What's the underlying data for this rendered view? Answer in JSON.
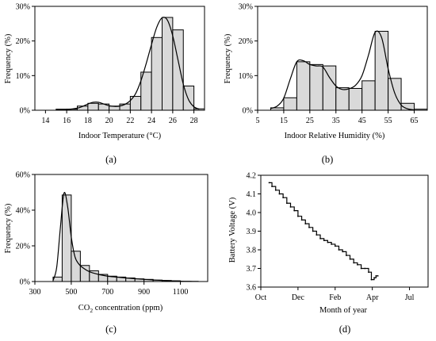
{
  "chart_data": [
    {
      "id": "a",
      "type": "bar",
      "caption": "(a)",
      "xlabel": "Indoor Temperature (°C)",
      "ylabel": "Frequency (%)",
      "xlim": [
        13,
        29
      ],
      "ylim": [
        0,
        30
      ],
      "xticks": [
        14,
        16,
        18,
        20,
        22,
        24,
        26,
        28
      ],
      "yticks": [
        0,
        10,
        20,
        30
      ],
      "ytick_labels": [
        "0%",
        "10%",
        "20%",
        "30%"
      ],
      "bins": [
        [
          15,
          16
        ],
        [
          16,
          17
        ],
        [
          17,
          18
        ],
        [
          18,
          19
        ],
        [
          19,
          20
        ],
        [
          20,
          21
        ],
        [
          21,
          22
        ],
        [
          22,
          23
        ],
        [
          23,
          24
        ],
        [
          24,
          25
        ],
        [
          25,
          26
        ],
        [
          26,
          27
        ],
        [
          27,
          28
        ],
        [
          28,
          29
        ]
      ],
      "values": [
        0.3,
        0.3,
        1.2,
        2.0,
        1.8,
        1.2,
        1.8,
        4.0,
        11.0,
        21.0,
        26.8,
        23.2,
        7.0,
        0.4
      ],
      "density_curve": {
        "x": [
          15,
          16,
          17,
          17.5,
          18,
          18.5,
          19,
          19.5,
          20,
          20.5,
          21,
          21.5,
          22,
          22.5,
          23,
          23.5,
          24,
          24.5,
          25,
          25.5,
          26,
          26.5,
          27,
          27.5,
          28,
          28.5
        ],
        "y": [
          0.1,
          0.2,
          0.6,
          1.1,
          1.8,
          2.3,
          2.3,
          1.8,
          1.3,
          1.1,
          1.2,
          1.7,
          2.8,
          4.8,
          8.5,
          13.5,
          19.0,
          24.0,
          26.7,
          26.0,
          21.5,
          14.5,
          7.5,
          3.0,
          1.0,
          0.3
        ]
      }
    },
    {
      "id": "b",
      "type": "bar",
      "caption": "(b)",
      "xlabel": "Indoor Relative Humidity (%)",
      "ylabel": "Frequency (%)",
      "xlim": [
        5,
        70
      ],
      "ylim": [
        0,
        30
      ],
      "xticks": [
        5,
        15,
        25,
        35,
        45,
        55,
        65
      ],
      "yticks": [
        0,
        10,
        20,
        30
      ],
      "ytick_labels": [
        "0%",
        "10%",
        "20%",
        "30%"
      ],
      "bins": [
        [
          10,
          15
        ],
        [
          15,
          20
        ],
        [
          20,
          25
        ],
        [
          25,
          30
        ],
        [
          30,
          35
        ],
        [
          35,
          40
        ],
        [
          40,
          45
        ],
        [
          45,
          50
        ],
        [
          50,
          55
        ],
        [
          55,
          60
        ],
        [
          60,
          65
        ]
      ],
      "values": [
        0.7,
        3.6,
        14.0,
        13.2,
        12.8,
        6.5,
        6.3,
        8.5,
        22.8,
        9.2,
        2.0
      ],
      "extra_bars": [
        {
          "bin": [
            65,
            70
          ],
          "value": 0.3
        }
      ],
      "density_curve": {
        "x": [
          10,
          12.5,
          15,
          17.5,
          20,
          22.5,
          25,
          27.5,
          30,
          32.5,
          35,
          37.5,
          40,
          42.5,
          45,
          47.5,
          50,
          52.5,
          55,
          57.5,
          60,
          62.5,
          65
        ],
        "y": [
          0.5,
          1.2,
          3.5,
          9.0,
          14.0,
          14.3,
          13.2,
          12.8,
          12.5,
          9.5,
          7.0,
          6.0,
          6.2,
          7.2,
          10.0,
          16.0,
          22.5,
          21.0,
          12.0,
          5.0,
          1.5,
          0.4,
          0.1
        ]
      }
    },
    {
      "id": "c",
      "type": "bar",
      "caption": "(c)",
      "xlabel_main": "CO",
      "xlabel_sub": "2",
      "xlabel_rest": " concentration (ppm)",
      "ylabel": "Frequency (%)",
      "xlim": [
        300,
        1250
      ],
      "ylim": [
        0,
        60
      ],
      "xticks": [
        300,
        500,
        700,
        900,
        1100
      ],
      "yticks": [
        0,
        20,
        40,
        60
      ],
      "ytick_labels": [
        "0%",
        "20%",
        "40%",
        "60%"
      ],
      "bins": [
        [
          400,
          450
        ],
        [
          450,
          500
        ],
        [
          500,
          550
        ],
        [
          550,
          600
        ],
        [
          600,
          650
        ],
        [
          650,
          700
        ],
        [
          700,
          750
        ],
        [
          750,
          800
        ],
        [
          800,
          850
        ],
        [
          850,
          900
        ],
        [
          900,
          950
        ],
        [
          950,
          1000
        ],
        [
          1000,
          1050
        ],
        [
          1050,
          1100
        ]
      ],
      "values": [
        2.5,
        48.5,
        17.0,
        9.0,
        6.0,
        4.0,
        3.0,
        2.5,
        2.0,
        1.5,
        1.2,
        0.8,
        0.6,
        0.4
      ],
      "density_curve": {
        "x": [
          400,
          420,
          440,
          460,
          480,
          500,
          520,
          540,
          560,
          600,
          650,
          700,
          750,
          800,
          850,
          900,
          950,
          1000,
          1050,
          1100,
          1150,
          1200
        ],
        "y": [
          0.5,
          8.0,
          30.0,
          49.5,
          42.0,
          25.0,
          14.0,
          10.0,
          8.0,
          5.5,
          4.0,
          3.0,
          2.5,
          2.0,
          1.6,
          1.2,
          0.9,
          0.6,
          0.4,
          0.2,
          0.1,
          0.05
        ]
      }
    },
    {
      "id": "d",
      "type": "line",
      "caption": "(d)",
      "xlabel": "Month of year",
      "ylabel": "Battery Voltage (V)",
      "xlim": [
        0,
        9
      ],
      "ylim": [
        3.6,
        4.2
      ],
      "xticks": [
        0,
        2,
        4,
        6,
        8
      ],
      "xtick_labels": [
        "Oct",
        "Dec",
        "Feb",
        "Apr",
        "Jul"
      ],
      "yticks": [
        3.6,
        3.7,
        3.8,
        3.9,
        4.0,
        4.1,
        4.2
      ],
      "ytick_labels": [
        "3.6",
        "3.7",
        "3.8",
        "3.9",
        "4.0",
        "4.1",
        "4.2"
      ],
      "series": [
        {
          "x": [
            0.45,
            0.6,
            0.8,
            1.0,
            1.2,
            1.4,
            1.6,
            1.8,
            2.0,
            2.2,
            2.4,
            2.6,
            2.8,
            3.0,
            3.2,
            3.4,
            3.6,
            3.8,
            4.0,
            4.2,
            4.4,
            4.6,
            4.8,
            5.0,
            5.2,
            5.4,
            5.6,
            5.8,
            5.95,
            6.1,
            6.2,
            6.3
          ],
          "y": [
            4.16,
            4.14,
            4.12,
            4.1,
            4.08,
            4.05,
            4.03,
            4.01,
            3.98,
            3.96,
            3.94,
            3.92,
            3.9,
            3.88,
            3.86,
            3.85,
            3.84,
            3.83,
            3.82,
            3.8,
            3.79,
            3.77,
            3.75,
            3.73,
            3.72,
            3.7,
            3.7,
            3.68,
            3.64,
            3.65,
            3.66,
            3.66
          ]
        }
      ]
    }
  ]
}
